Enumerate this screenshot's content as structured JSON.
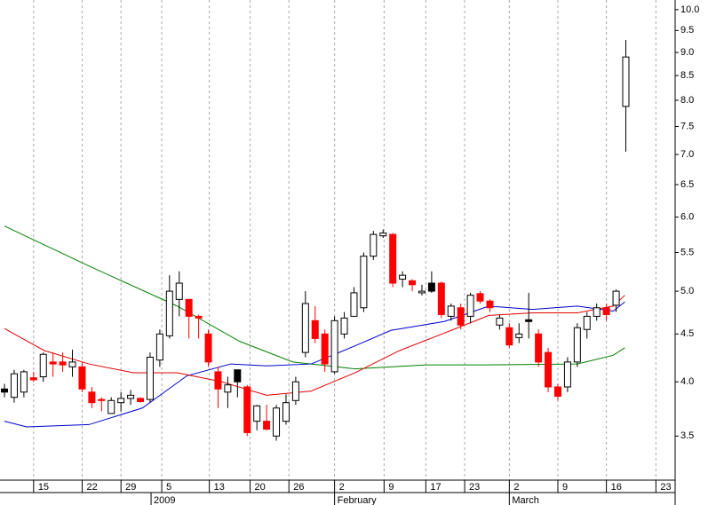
{
  "chart_data": {
    "type": "candlestick",
    "log_scale": true,
    "grid": "vertical",
    "up_color": "#ffffff",
    "down_color": "#ff0000",
    "edge_color": "#000000",
    "ylim": [
      3.14,
      10.24
    ],
    "yticks": [
      3.5,
      {
        "value": 4,
        "label": "4.0"
      },
      4.5,
      {
        "value": 5,
        "label": "5.0"
      },
      5.5,
      {
        "value": 6,
        "label": "6.0"
      },
      6.5,
      {
        "value": 7,
        "label": "7.0"
      },
      7.5,
      {
        "value": 8,
        "label": "8.0"
      },
      8.5,
      {
        "value": 9,
        "label": "9.0"
      },
      9.5,
      {
        "value": 10,
        "label": "10.0"
      }
    ],
    "xlim": [
      -0.46,
      69.08
    ],
    "xticks": [
      {
        "value": 3,
        "label": "15"
      },
      {
        "value": 8,
        "label": "22"
      },
      {
        "value": 12,
        "label": "29"
      },
      {
        "value": 16.2,
        "label": "5"
      },
      {
        "value": 21.1,
        "label": "13"
      },
      {
        "value": 25.3,
        "label": "20"
      },
      {
        "value": 29.3,
        "label": "26"
      },
      {
        "value": 34,
        "label": "2"
      },
      {
        "value": 39.1,
        "label": "9"
      },
      {
        "value": 43.4,
        "label": "17"
      },
      {
        "value": 47.4,
        "label": "23"
      },
      {
        "value": 52,
        "label": "2"
      },
      {
        "value": 57,
        "label": "9"
      },
      {
        "value": 62,
        "label": "16"
      },
      {
        "value": 67.1,
        "label": "23"
      }
    ],
    "month_labels": [
      {
        "value": 15.1,
        "label": "2009"
      },
      {
        "value": 34,
        "label": "February"
      },
      {
        "value": 52,
        "label": "March"
      }
    ],
    "candles": [
      {
        "o": 3.93,
        "h": 3.98,
        "l": 3.85,
        "c": 3.9,
        "color": "#000000"
      },
      {
        "o": 3.85,
        "h": 4.12,
        "l": 3.8,
        "c": 4.08
      },
      {
        "o": 3.9,
        "h": 4.12,
        "l": 3.85,
        "c": 4.1
      },
      {
        "o": 4.04,
        "h": 4.1,
        "l": 4.0,
        "c": 4.02
      },
      {
        "o": 4.05,
        "h": 4.3,
        "l": 4.0,
        "c": 4.28
      },
      {
        "o": 4.2,
        "h": 4.3,
        "l": 4.05,
        "c": 4.18
      },
      {
        "o": 4.2,
        "h": 4.3,
        "l": 4.1,
        "c": 4.17
      },
      {
        "o": 4.15,
        "h": 4.33,
        "l": 4.05,
        "c": 4.2
      },
      {
        "o": 4.15,
        "h": 4.2,
        "l": 3.9,
        "c": 3.93
      },
      {
        "o": 3.9,
        "h": 3.95,
        "l": 3.75,
        "c": 3.8
      },
      {
        "o": 3.83,
        "h": 3.85,
        "l": 3.72,
        "c": 3.82
      },
      {
        "o": 3.7,
        "h": 3.85,
        "l": 3.7,
        "c": 3.82
      },
      {
        "o": 3.8,
        "h": 3.9,
        "l": 3.72,
        "c": 3.84
      },
      {
        "o": 3.84,
        "h": 3.92,
        "l": 3.78,
        "c": 3.87
      },
      {
        "o": 3.84,
        "h": 3.85,
        "l": 3.8,
        "c": 3.81
      },
      {
        "o": 3.83,
        "h": 4.3,
        "l": 3.8,
        "c": 4.25
      },
      {
        "o": 4.22,
        "h": 4.55,
        "l": 4.15,
        "c": 4.5
      },
      {
        "o": 4.48,
        "h": 5.2,
        "l": 4.45,
        "c": 5.0
      },
      {
        "o": 4.9,
        "h": 5.25,
        "l": 4.7,
        "c": 5.1
      },
      {
        "o": 4.9,
        "h": 4.9,
        "l": 4.45,
        "c": 4.7
      },
      {
        "o": 4.7,
        "h": 4.72,
        "l": 4.45,
        "c": 4.68
      },
      {
        "o": 4.5,
        "h": 4.55,
        "l": 4.15,
        "c": 4.2
      },
      {
        "o": 4.1,
        "h": 4.15,
        "l": 3.75,
        "c": 3.93
      },
      {
        "o": 3.9,
        "h": 4.05,
        "l": 3.75,
        "c": 3.97
      },
      {
        "o": 4.12,
        "h": 4.12,
        "l": 3.85,
        "c": 4.0,
        "color": "#000000"
      },
      {
        "o": 3.95,
        "h": 3.97,
        "l": 3.5,
        "c": 3.53
      },
      {
        "o": 3.63,
        "h": 3.78,
        "l": 3.55,
        "c": 3.77
      },
      {
        "o": 3.63,
        "h": 3.78,
        "l": 3.55,
        "c": 3.56
      },
      {
        "o": 3.5,
        "h": 3.78,
        "l": 3.46,
        "c": 3.75
      },
      {
        "o": 3.63,
        "h": 3.88,
        "l": 3.6,
        "c": 3.8
      },
      {
        "o": 3.82,
        "h": 4.05,
        "l": 3.78,
        "c": 4.0
      },
      {
        "o": 4.3,
        "h": 5.0,
        "l": 4.25,
        "c": 4.85
      },
      {
        "o": 4.65,
        "h": 4.82,
        "l": 4.4,
        "c": 4.45
      },
      {
        "o": 4.5,
        "h": 4.55,
        "l": 4.1,
        "c": 4.18
      },
      {
        "o": 4.1,
        "h": 4.7,
        "l": 4.08,
        "c": 4.65
      },
      {
        "o": 4.5,
        "h": 4.75,
        "l": 4.45,
        "c": 4.68
      },
      {
        "o": 4.7,
        "h": 5.05,
        "l": 4.7,
        "c": 4.98
      },
      {
        "o": 4.8,
        "h": 5.5,
        "l": 4.75,
        "c": 5.45
      },
      {
        "o": 5.45,
        "h": 5.8,
        "l": 5.4,
        "c": 5.75
      },
      {
        "o": 5.73,
        "h": 5.82,
        "l": 5.7,
        "c": 5.77
      },
      {
        "o": 5.75,
        "h": 5.77,
        "l": 5.05,
        "c": 5.1
      },
      {
        "o": 5.15,
        "h": 5.25,
        "l": 5.05,
        "c": 5.2
      },
      {
        "o": 5.13,
        "h": 5.15,
        "l": 5.0,
        "c": 5.08
      },
      {
        "o": 4.98,
        "h": 5.08,
        "l": 4.95,
        "c": 5.0
      },
      {
        "o": 5.1,
        "h": 5.25,
        "l": 4.98,
        "c": 5.0,
        "color": "#000000"
      },
      {
        "o": 5.1,
        "h": 5.12,
        "l": 4.68,
        "c": 4.72
      },
      {
        "o": 4.7,
        "h": 4.85,
        "l": 4.65,
        "c": 4.82
      },
      {
        "o": 4.8,
        "h": 4.85,
        "l": 4.55,
        "c": 4.6
      },
      {
        "o": 4.7,
        "h": 4.98,
        "l": 4.62,
        "c": 4.95
      },
      {
        "o": 4.97,
        "h": 5.0,
        "l": 4.85,
        "c": 4.88
      },
      {
        "o": 4.88,
        "h": 4.9,
        "l": 4.75,
        "c": 4.8
      },
      {
        "o": 4.6,
        "h": 4.72,
        "l": 4.55,
        "c": 4.68
      },
      {
        "o": 4.57,
        "h": 4.62,
        "l": 4.35,
        "c": 4.38
      },
      {
        "o": 4.46,
        "h": 4.62,
        "l": 4.4,
        "c": 4.5
      },
      {
        "o": 4.66,
        "h": 4.98,
        "l": 4.45,
        "c": 4.64,
        "color": "#000000"
      },
      {
        "o": 4.5,
        "h": 4.55,
        "l": 4.15,
        "c": 4.2
      },
      {
        "o": 4.3,
        "h": 4.35,
        "l": 3.9,
        "c": 3.95
      },
      {
        "o": 3.95,
        "h": 3.98,
        "l": 3.82,
        "c": 3.86
      },
      {
        "o": 3.95,
        "h": 4.25,
        "l": 3.9,
        "c": 4.2
      },
      {
        "o": 4.2,
        "h": 4.62,
        "l": 4.15,
        "c": 4.57
      },
      {
        "o": 4.55,
        "h": 4.75,
        "l": 4.45,
        "c": 4.7
      },
      {
        "o": 4.7,
        "h": 4.85,
        "l": 4.65,
        "c": 4.8
      },
      {
        "o": 4.8,
        "h": 4.85,
        "l": 4.65,
        "c": 4.72
      },
      {
        "o": 4.83,
        "h": 5.02,
        "l": 4.75,
        "c": 5.0
      },
      {
        "o": 7.88,
        "h": 9.28,
        "l": 7.05,
        "c": 8.9
      }
    ],
    "lines": [
      {
        "color": "#008000",
        "x": [
          0,
          8.7,
          17.8,
          24.2,
          29.7,
          36.1,
          43.5,
          49.9,
          59,
          62.7,
          63.9
        ],
        "values": [
          5.87,
          5.32,
          4.82,
          4.42,
          4.2,
          4.13,
          4.17,
          4.17,
          4.18,
          4.27,
          4.35
        ]
      },
      {
        "color": "#0000cc",
        "x": [
          0,
          2.3,
          8.7,
          14.2,
          18.8,
          23.3,
          27,
          31.6,
          36.1,
          39.8,
          45.3,
          49.9,
          54.4,
          59,
          62.7,
          63.9
        ],
        "values": [
          3.63,
          3.58,
          3.6,
          3.75,
          4.06,
          4.18,
          4.16,
          4.18,
          4.37,
          4.54,
          4.64,
          4.82,
          4.78,
          4.82,
          4.76,
          4.87
        ]
      },
      {
        "color": "#e00000",
        "x": [
          0,
          4.1,
          8.7,
          13.3,
          17.8,
          22.4,
          27,
          31.6,
          36.1,
          40.7,
          45.3,
          49.9,
          54.4,
          59,
          62.7,
          63.9
        ],
        "values": [
          4.56,
          4.32,
          4.18,
          4.09,
          4.09,
          4.0,
          3.87,
          3.91,
          4.09,
          4.32,
          4.51,
          4.71,
          4.74,
          4.74,
          4.82,
          4.95
        ]
      }
    ]
  }
}
